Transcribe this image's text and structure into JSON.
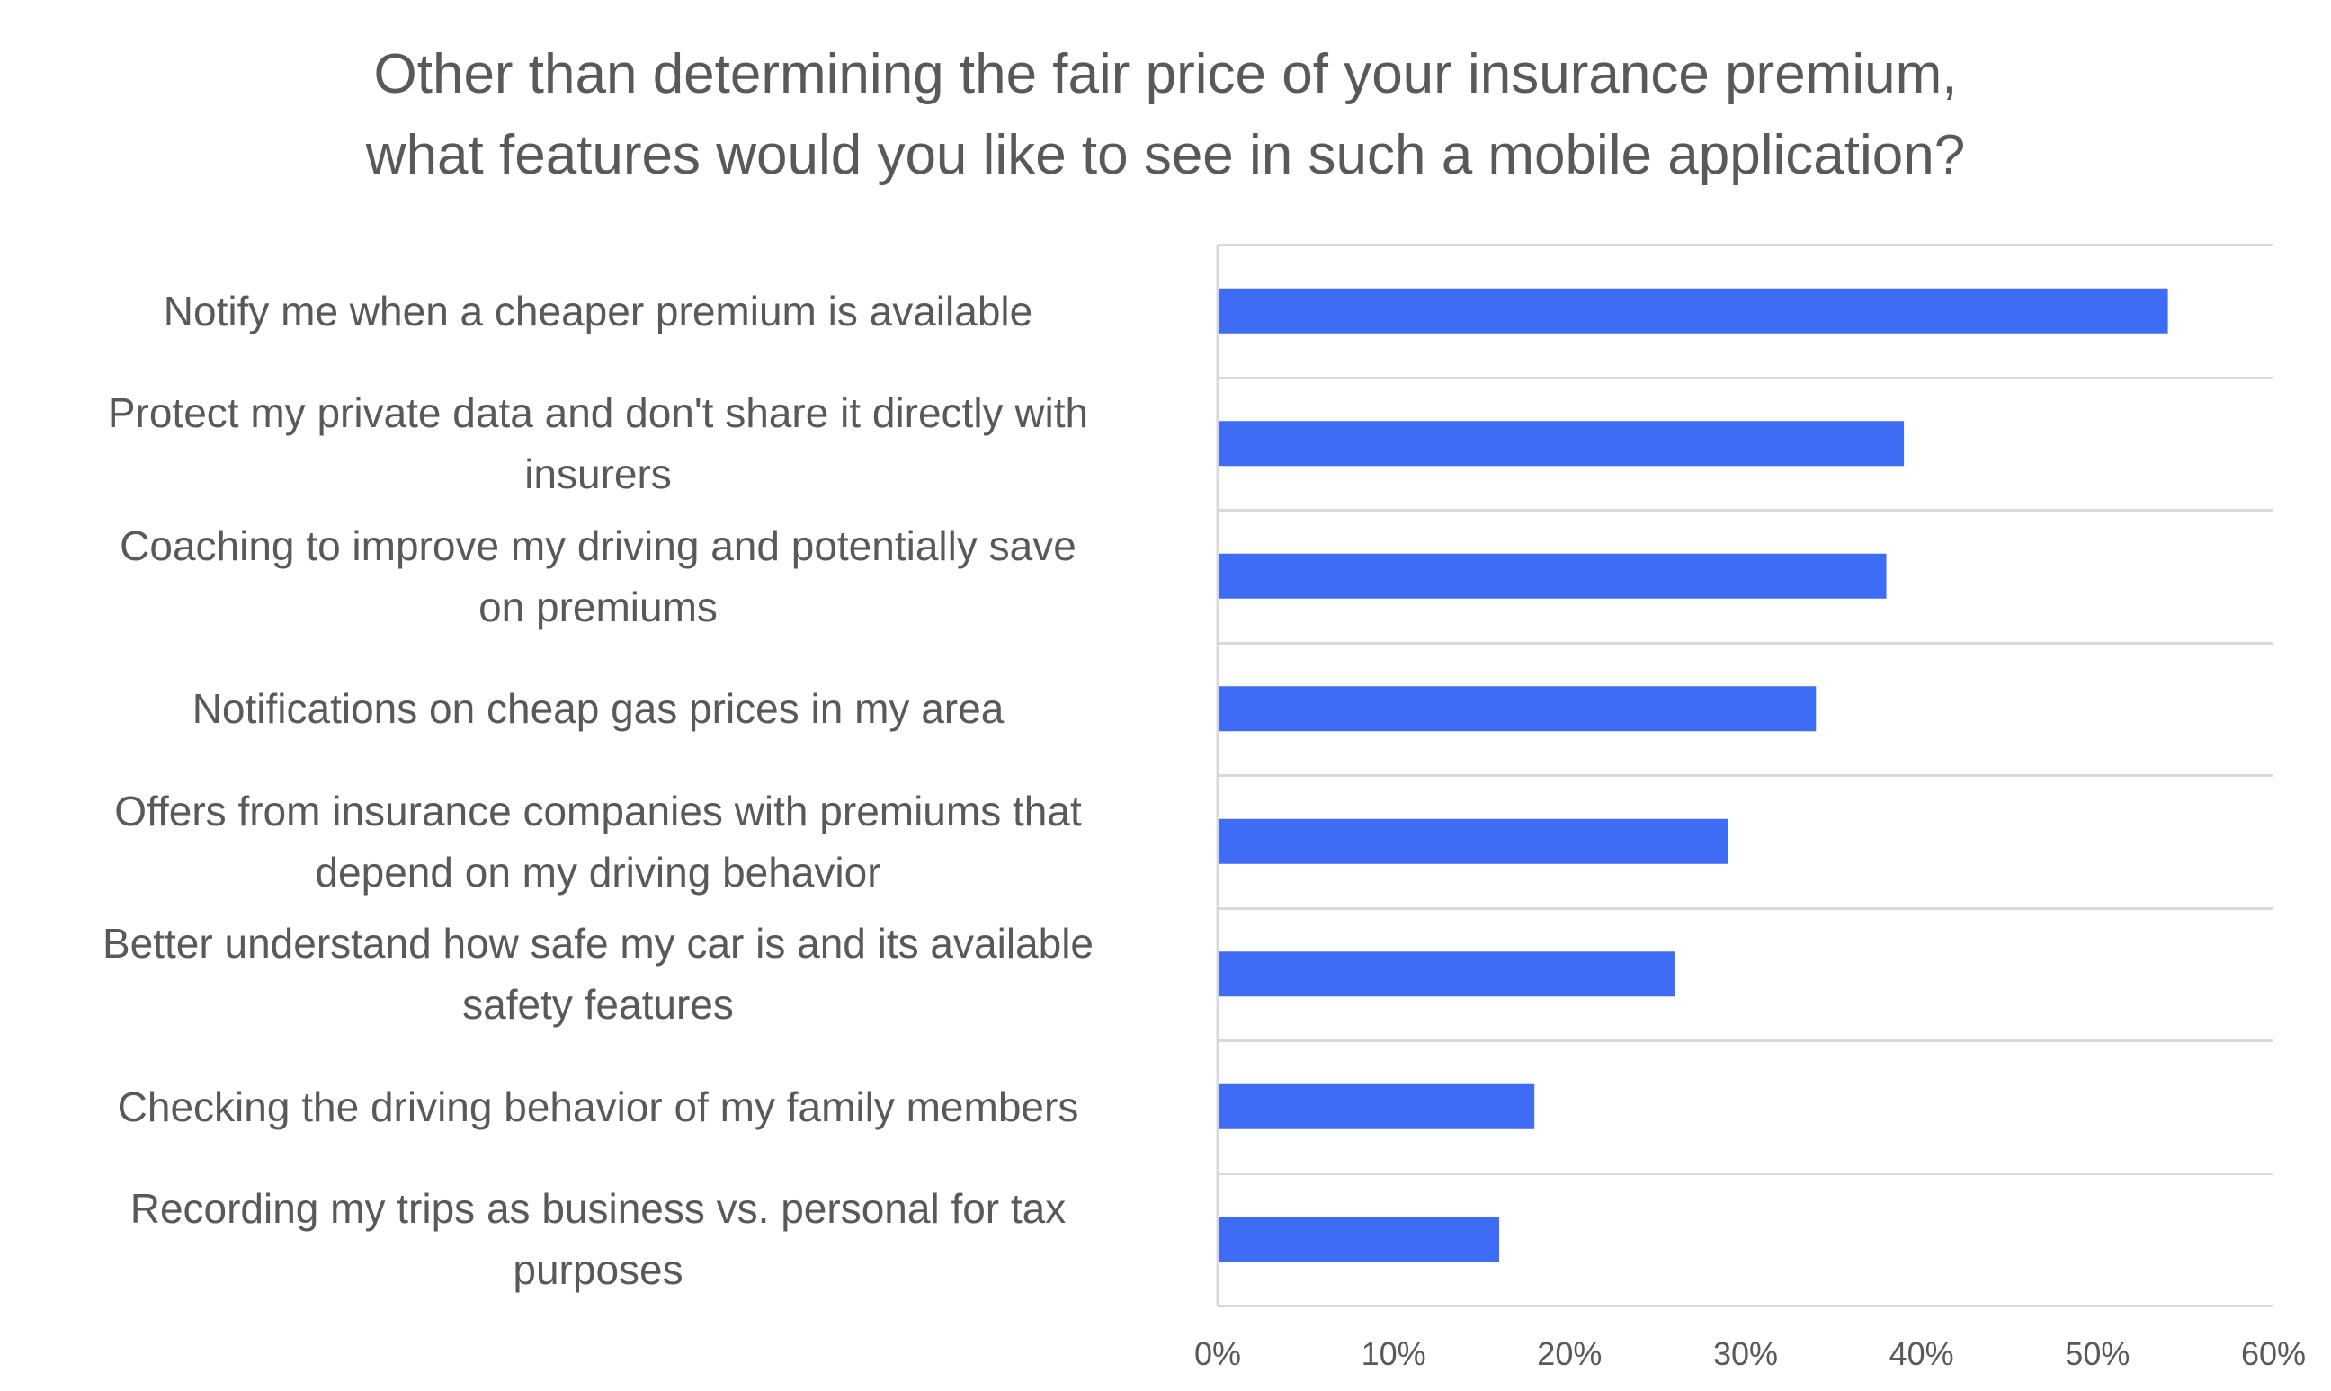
{
  "chart_data": {
    "type": "bar",
    "orientation": "horizontal",
    "title": [
      "Other than determining the fair price of your insurance premium,",
      "what features would you like to see in such a mobile application?"
    ],
    "categories": [
      "Notify me when a cheaper premium is available",
      "Protect my private data and don't share it directly with insurers",
      "Coaching to improve my driving and potentially save on premiums",
      "Notifications on cheap gas prices in my area",
      "Offers from insurance companies with premiums that depend on my driving behavior",
      "Better understand how safe my car is and its available safety features",
      "Checking the driving behavior of my family members",
      "Recording my trips as business vs. personal for tax purposes"
    ],
    "category_lines": [
      [
        "Notify me when a cheaper premium is available"
      ],
      [
        "Protect my private data and don't share it directly with",
        "insurers"
      ],
      [
        "Coaching to improve my driving and potentially save",
        "on premiums"
      ],
      [
        "Notifications on cheap gas prices in my area"
      ],
      [
        "Offers from insurance companies with premiums that",
        "depend on my driving behavior"
      ],
      [
        "Better understand how safe my car is and its available",
        "safety features"
      ],
      [
        "Checking the driving behavior of my family members"
      ],
      [
        "Recording my trips as business vs. personal for tax",
        "purposes"
      ]
    ],
    "values": [
      0.54,
      0.39,
      0.38,
      0.34,
      0.29,
      0.26,
      0.18,
      0.16
    ],
    "xlim": [
      0,
      0.6
    ],
    "xticks": [
      0,
      0.1,
      0.2,
      0.3,
      0.4,
      0.5,
      0.6
    ],
    "xtick_labels": [
      "0%",
      "10%",
      "20%",
      "30%",
      "40%",
      "50%",
      "60%"
    ],
    "xlabel": "",
    "ylabel": "",
    "grid": "horizontal separators between categories",
    "legend": "none",
    "colors": {
      "bar": "#3f6cf5",
      "grid": "#d9d9d9",
      "text": "#595959"
    }
  }
}
